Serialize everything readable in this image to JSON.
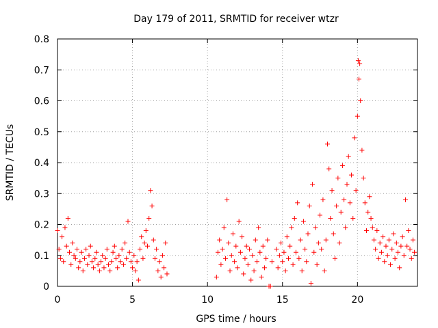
{
  "chart_data": {
    "type": "scatter",
    "title": "Day 179 of 2011, SRMTID for receiver wtzr",
    "xlabel": "GPS time / hours",
    "ylabel": "SRMTID / TECUs",
    "xlim": [
      0,
      24
    ],
    "ylim": [
      0,
      0.8
    ],
    "xticks": [
      0,
      5,
      10,
      15,
      20
    ],
    "yticks": [
      0,
      0.1,
      0.2,
      0.3,
      0.4,
      0.5,
      0.6,
      0.7,
      0.8
    ],
    "grid": true,
    "marker": "plus",
    "color": "#ff0000",
    "series": [
      {
        "name": "SRMTID",
        "points": [
          [
            0.0,
            0.18
          ],
          [
            0.1,
            0.12
          ],
          [
            0.2,
            0.09
          ],
          [
            0.3,
            0.16
          ],
          [
            0.4,
            0.08
          ],
          [
            0.5,
            0.19
          ],
          [
            0.6,
            0.13
          ],
          [
            0.7,
            0.22
          ],
          [
            0.8,
            0.11
          ],
          [
            0.9,
            0.07
          ],
          [
            1.0,
            0.14
          ],
          [
            1.1,
            0.1
          ],
          [
            1.2,
            0.09
          ],
          [
            1.3,
            0.12
          ],
          [
            1.4,
            0.06
          ],
          [
            1.5,
            0.08
          ],
          [
            1.6,
            0.11
          ],
          [
            1.7,
            0.05
          ],
          [
            1.8,
            0.09
          ],
          [
            1.9,
            0.12
          ],
          [
            2.0,
            0.07
          ],
          [
            2.1,
            0.1
          ],
          [
            2.2,
            0.13
          ],
          [
            2.3,
            0.08
          ],
          [
            2.4,
            0.06
          ],
          [
            2.5,
            0.09
          ],
          [
            2.6,
            0.11
          ],
          [
            2.7,
            0.07
          ],
          [
            2.8,
            0.05
          ],
          [
            2.9,
            0.08
          ],
          [
            3.0,
            0.1
          ],
          [
            3.1,
            0.06
          ],
          [
            3.2,
            0.09
          ],
          [
            3.3,
            0.12
          ],
          [
            3.4,
            0.07
          ],
          [
            3.5,
            0.05
          ],
          [
            3.6,
            0.08
          ],
          [
            3.7,
            0.11
          ],
          [
            3.8,
            0.13
          ],
          [
            3.9,
            0.09
          ],
          [
            4.0,
            0.06
          ],
          [
            4.1,
            0.1
          ],
          [
            4.2,
            0.08
          ],
          [
            4.3,
            0.12
          ],
          [
            4.4,
            0.07
          ],
          [
            4.5,
            0.14
          ],
          [
            4.6,
            0.09
          ],
          [
            4.7,
            0.21
          ],
          [
            4.8,
            0.11
          ],
          [
            4.9,
            0.08
          ],
          [
            5.0,
            0.06
          ],
          [
            5.1,
            0.1
          ],
          [
            5.2,
            0.05
          ],
          [
            5.3,
            0.08
          ],
          [
            5.4,
            0.02
          ],
          [
            5.5,
            0.12
          ],
          [
            5.6,
            0.16
          ],
          [
            5.7,
            0.09
          ],
          [
            5.8,
            0.14
          ],
          [
            5.9,
            0.18
          ],
          [
            6.0,
            0.13
          ],
          [
            6.1,
            0.22
          ],
          [
            6.2,
            0.31
          ],
          [
            6.3,
            0.26
          ],
          [
            6.4,
            0.15
          ],
          [
            6.5,
            0.09
          ],
          [
            6.6,
            0.12
          ],
          [
            6.7,
            0.05
          ],
          [
            6.8,
            0.08
          ],
          [
            6.9,
            0.03
          ],
          [
            7.0,
            0.1
          ],
          [
            7.1,
            0.06
          ],
          [
            7.2,
            0.14
          ],
          [
            7.3,
            0.04
          ],
          [
            10.6,
            0.03
          ],
          [
            10.7,
            0.11
          ],
          [
            10.8,
            0.15
          ],
          [
            10.9,
            0.07
          ],
          [
            11.0,
            0.12
          ],
          [
            11.1,
            0.19
          ],
          [
            11.2,
            0.09
          ],
          [
            11.3,
            0.28
          ],
          [
            11.4,
            0.14
          ],
          [
            11.5,
            0.05
          ],
          [
            11.6,
            0.1
          ],
          [
            11.7,
            0.17
          ],
          [
            11.8,
            0.08
          ],
          [
            11.9,
            0.13
          ],
          [
            12.0,
            0.06
          ],
          [
            12.1,
            0.21
          ],
          [
            12.2,
            0.11
          ],
          [
            12.3,
            0.16
          ],
          [
            12.4,
            0.04
          ],
          [
            12.5,
            0.09
          ],
          [
            12.6,
            0.13
          ],
          [
            12.7,
            0.07
          ],
          [
            12.8,
            0.12
          ],
          [
            12.9,
            0.02
          ],
          [
            13.0,
            0.1
          ],
          [
            13.1,
            0.05
          ],
          [
            13.2,
            0.15
          ],
          [
            13.3,
            0.08
          ],
          [
            13.4,
            0.19
          ],
          [
            13.5,
            0.11
          ],
          [
            13.6,
            0.03
          ],
          [
            13.7,
            0.13
          ],
          [
            13.8,
            0.06
          ],
          [
            13.9,
            0.09
          ],
          [
            14.0,
            0.15
          ],
          [
            14.1,
            0.0
          ],
          [
            14.2,
            0.0
          ],
          [
            14.3,
            0.08
          ],
          [
            14.6,
            0.12
          ],
          [
            14.7,
            0.06
          ],
          [
            14.8,
            0.1
          ],
          [
            14.9,
            0.14
          ],
          [
            15.0,
            0.08
          ],
          [
            15.1,
            0.11
          ],
          [
            15.2,
            0.05
          ],
          [
            15.3,
            0.16
          ],
          [
            15.4,
            0.09
          ],
          [
            15.5,
            0.13
          ],
          [
            15.6,
            0.19
          ],
          [
            15.7,
            0.07
          ],
          [
            15.8,
            0.22
          ],
          [
            15.9,
            0.11
          ],
          [
            16.0,
            0.27
          ],
          [
            16.1,
            0.09
          ],
          [
            16.2,
            0.15
          ],
          [
            16.3,
            0.05
          ],
          [
            16.4,
            0.21
          ],
          [
            16.5,
            0.12
          ],
          [
            16.6,
            0.08
          ],
          [
            16.7,
            0.17
          ],
          [
            16.8,
            0.26
          ],
          [
            16.9,
            0.01
          ],
          [
            17.0,
            0.33
          ],
          [
            17.1,
            0.11
          ],
          [
            17.2,
            0.19
          ],
          [
            17.3,
            0.07
          ],
          [
            17.4,
            0.14
          ],
          [
            17.5,
            0.23
          ],
          [
            17.6,
            0.12
          ],
          [
            17.7,
            0.28
          ],
          [
            17.8,
            0.05
          ],
          [
            17.9,
            0.15
          ],
          [
            18.0,
            0.46
          ],
          [
            18.1,
            0.38
          ],
          [
            18.2,
            0.22
          ],
          [
            18.3,
            0.31
          ],
          [
            18.4,
            0.17
          ],
          [
            18.5,
            0.09
          ],
          [
            18.6,
            0.26
          ],
          [
            18.7,
            0.35
          ],
          [
            18.8,
            0.14
          ],
          [
            18.9,
            0.24
          ],
          [
            19.0,
            0.39
          ],
          [
            19.1,
            0.28
          ],
          [
            19.2,
            0.19
          ],
          [
            19.3,
            0.33
          ],
          [
            19.4,
            0.42
          ],
          [
            19.5,
            0.27
          ],
          [
            19.6,
            0.36
          ],
          [
            19.7,
            0.22
          ],
          [
            19.8,
            0.48
          ],
          [
            19.9,
            0.31
          ],
          [
            20.0,
            0.55
          ],
          [
            20.05,
            0.73
          ],
          [
            20.1,
            0.67
          ],
          [
            20.15,
            0.72
          ],
          [
            20.2,
            0.6
          ],
          [
            20.3,
            0.44
          ],
          [
            20.4,
            0.35
          ],
          [
            20.5,
            0.27
          ],
          [
            20.6,
            0.18
          ],
          [
            20.7,
            0.24
          ],
          [
            20.8,
            0.29
          ],
          [
            20.9,
            0.22
          ],
          [
            21.0,
            0.19
          ],
          [
            21.1,
            0.15
          ],
          [
            21.2,
            0.12
          ],
          [
            21.3,
            0.18
          ],
          [
            21.4,
            0.09
          ],
          [
            21.5,
            0.14
          ],
          [
            21.6,
            0.11
          ],
          [
            21.7,
            0.16
          ],
          [
            21.8,
            0.08
          ],
          [
            21.9,
            0.13
          ],
          [
            22.0,
            0.1
          ],
          [
            22.1,
            0.15
          ],
          [
            22.2,
            0.07
          ],
          [
            22.3,
            0.12
          ],
          [
            22.4,
            0.17
          ],
          [
            22.5,
            0.09
          ],
          [
            22.6,
            0.14
          ],
          [
            22.7,
            0.11
          ],
          [
            22.8,
            0.06
          ],
          [
            22.9,
            0.13
          ],
          [
            23.0,
            0.16
          ],
          [
            23.1,
            0.1
          ],
          [
            23.2,
            0.28
          ],
          [
            23.3,
            0.13
          ],
          [
            23.4,
            0.18
          ],
          [
            23.5,
            0.12
          ],
          [
            23.6,
            0.09
          ],
          [
            23.7,
            0.15
          ],
          [
            23.8,
            0.11
          ]
        ]
      }
    ]
  }
}
